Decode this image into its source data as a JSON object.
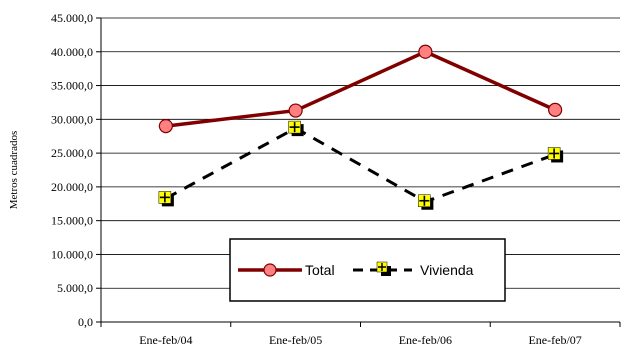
{
  "chart_data": {
    "type": "line",
    "categories": [
      "Ene-feb/04",
      "Ene-feb/05",
      "Ene-feb/06",
      "Ene-feb/07"
    ],
    "series": [
      {
        "name": "Total",
        "values": [
          29000,
          31300,
          40000,
          31400
        ],
        "color": "#800000",
        "marker_fill": "#ff8080",
        "style": "solid",
        "marker": "circle"
      },
      {
        "name": "Vivienda",
        "values": [
          18300,
          28700,
          17800,
          24800
        ],
        "color": "#000000",
        "marker_fill": "#ffff00",
        "style": "dashed",
        "marker": "square-plus"
      }
    ],
    "ylabel": "Metros cuadrados",
    "ylim": [
      0,
      45000
    ],
    "ytick_step": 5000,
    "ytick_labels": [
      "0,0",
      "5.000,0",
      "10.000,0",
      "15.000,0",
      "20.000,0",
      "25.000,0",
      "30.000,0",
      "35.000,0",
      "40.000,0",
      "45.000,0"
    ],
    "grid": true,
    "legend": "bottom-center"
  }
}
